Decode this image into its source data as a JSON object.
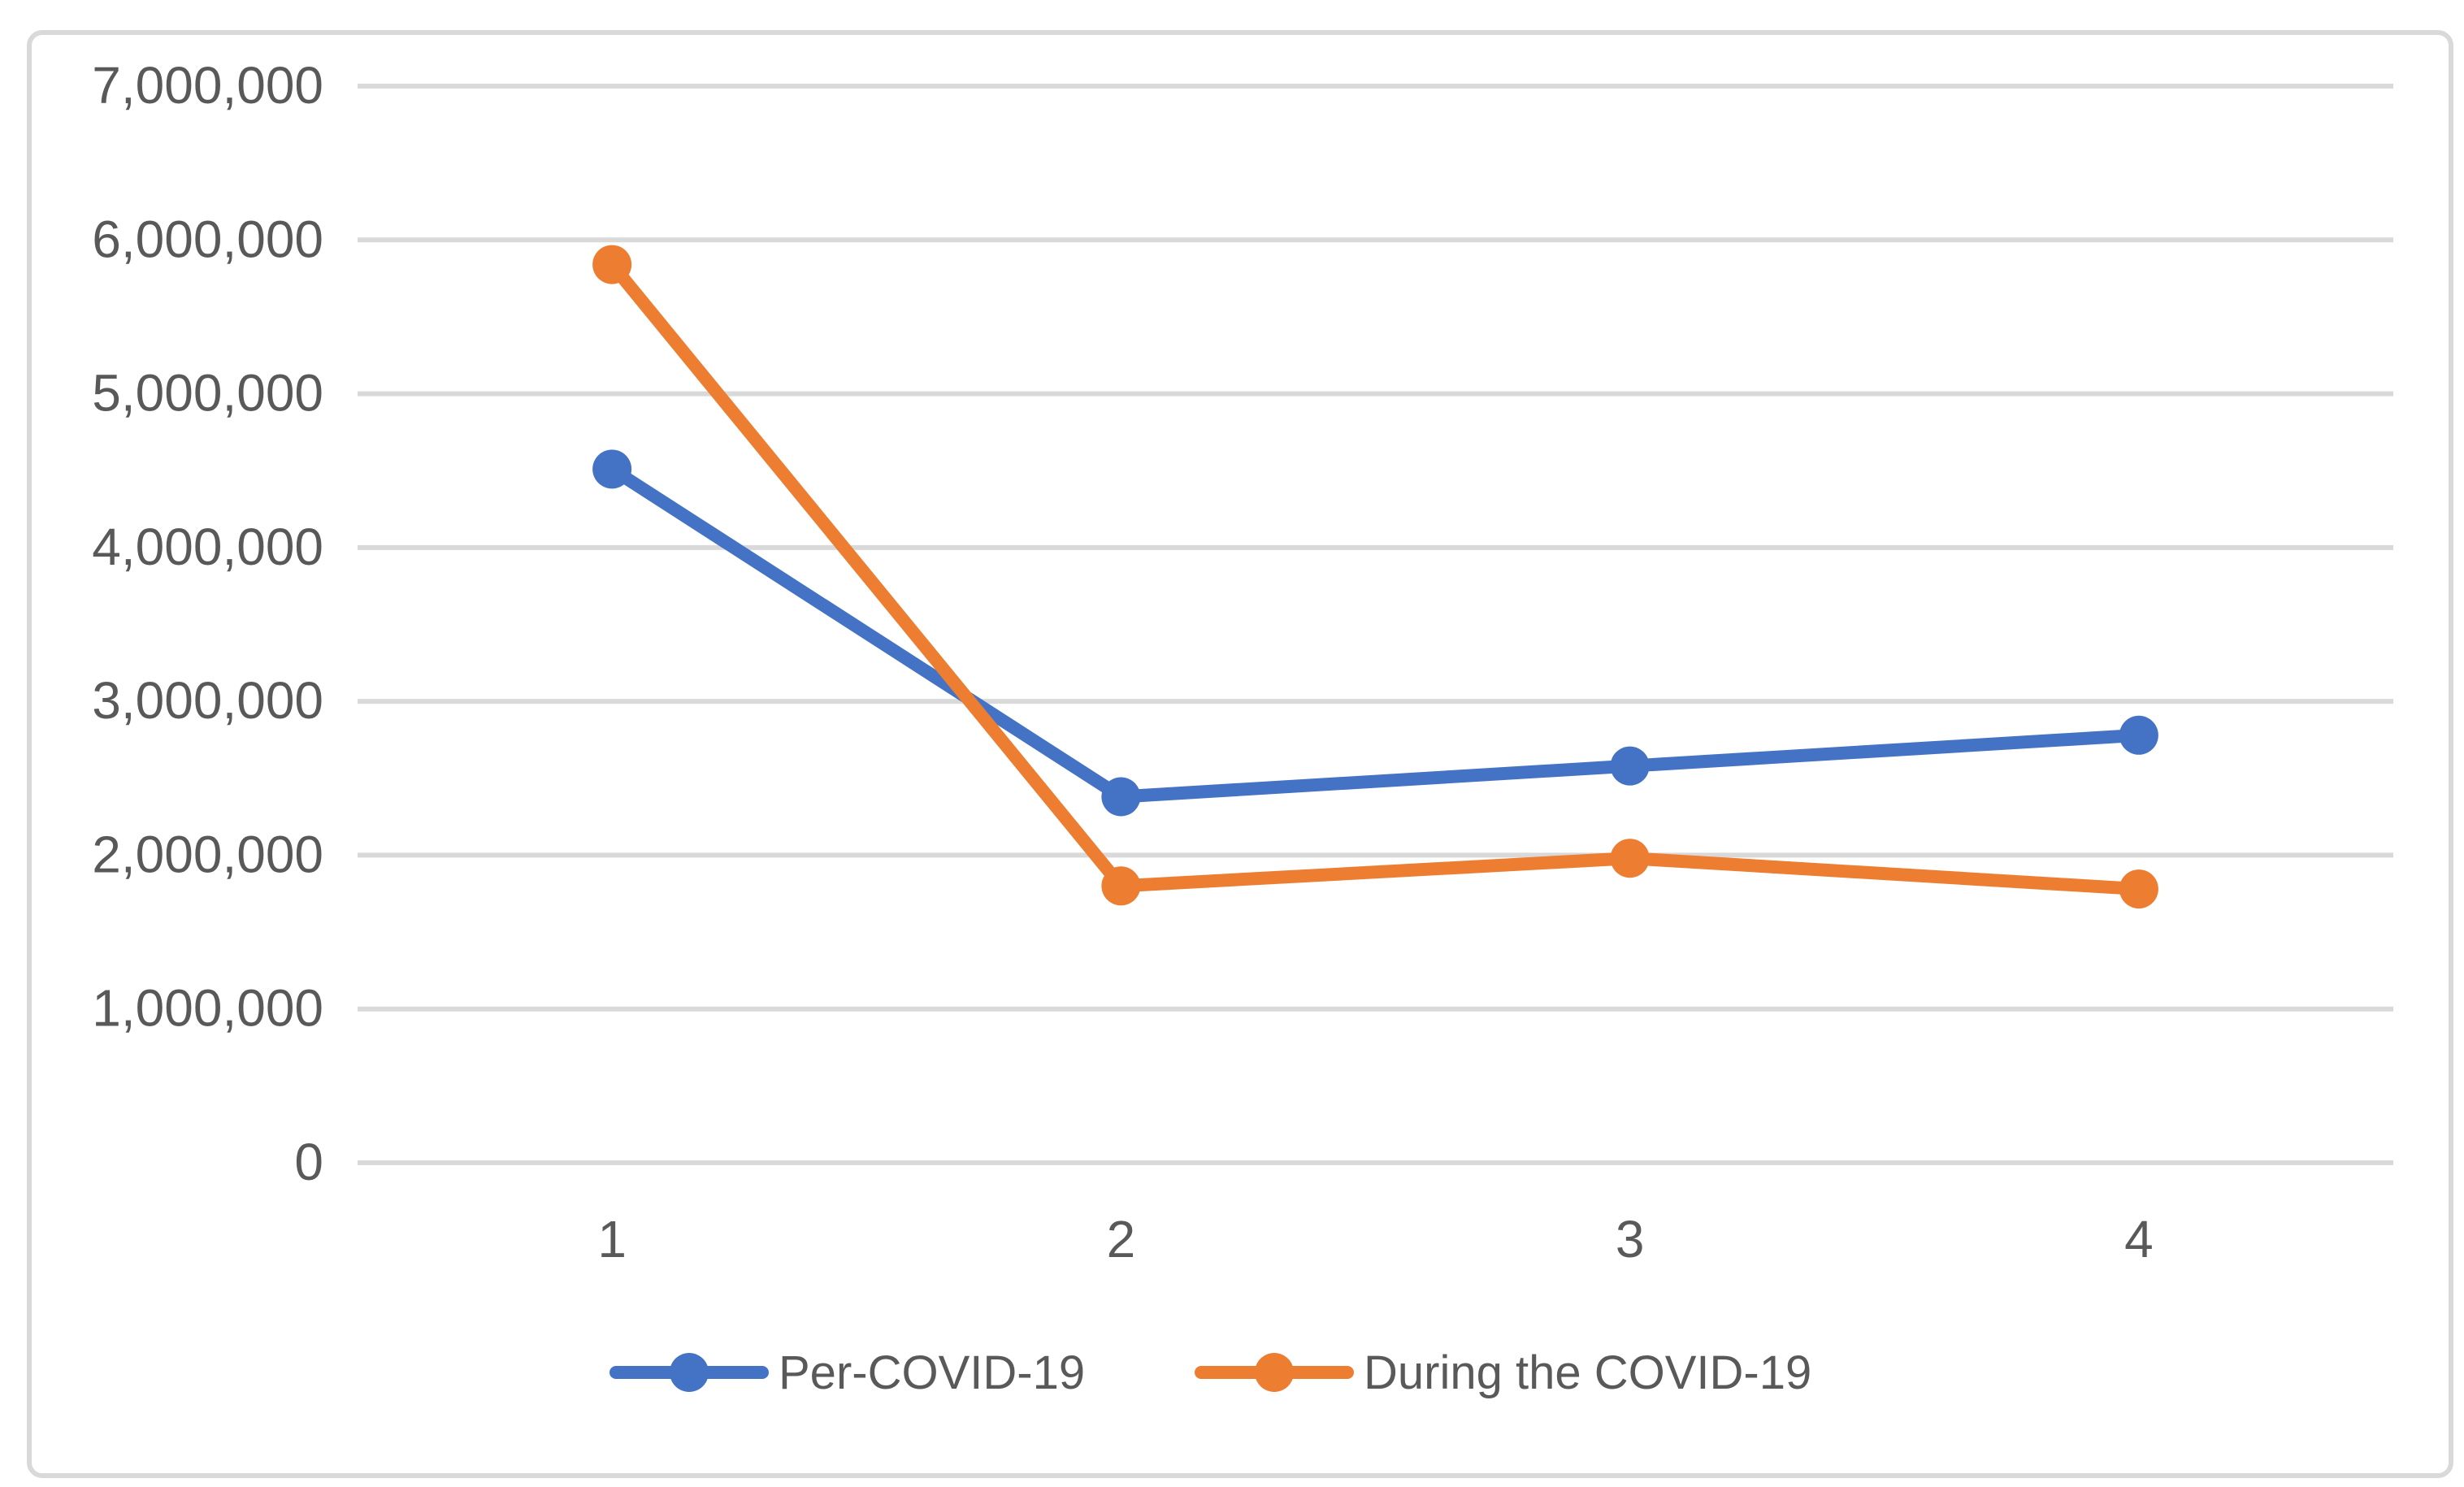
{
  "chart_data": {
    "type": "line",
    "categories": [
      "1",
      "2",
      "3",
      "4"
    ],
    "series": [
      {
        "name": "Per-COVID-19",
        "color": "#4472C4",
        "values": [
          4510000,
          2380000,
          2580000,
          2780000
        ]
      },
      {
        "name": "During the COVID-19",
        "color": "#ED7D31",
        "values": [
          5840000,
          1800000,
          1980000,
          1780000
        ]
      }
    ],
    "ylim": [
      0,
      7000000
    ],
    "y_tick_step": 1000000,
    "y_ticks": [
      0,
      1000000,
      2000000,
      3000000,
      4000000,
      5000000,
      6000000,
      7000000
    ],
    "y_tick_labels": [
      "0",
      "1,000,000",
      "2,000,000",
      "3,000,000",
      "4,000,000",
      "5,000,000",
      "6,000,000",
      "7,000,000"
    ],
    "grid": true,
    "legend_position": "bottom",
    "marker": "circle",
    "colors": {
      "gridline": "#D9D9D9",
      "chart_border": "#D9D9D9",
      "axis_label": "#595959",
      "background": "#FFFFFF"
    }
  }
}
